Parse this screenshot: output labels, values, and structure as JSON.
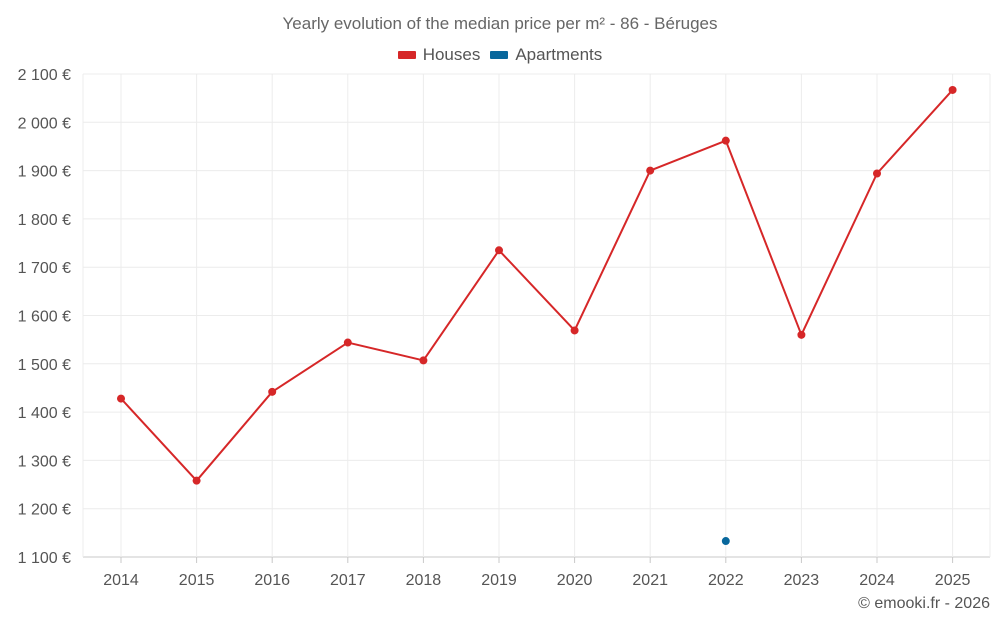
{
  "chart_data": {
    "type": "line",
    "title": "Yearly evolution of the median price per m² - 86 - Béruges",
    "x": [
      "2014",
      "2015",
      "2016",
      "2017",
      "2018",
      "2019",
      "2020",
      "2021",
      "2022",
      "2023",
      "2024",
      "2025"
    ],
    "series": [
      {
        "name": "Houses",
        "color": "#d62728",
        "values": [
          1428,
          1258,
          1442,
          1544,
          1507,
          1735,
          1569,
          1900,
          1962,
          1560,
          1894,
          2067
        ]
      },
      {
        "name": "Apartments",
        "color": "#08679c",
        "values": [
          null,
          null,
          null,
          null,
          null,
          null,
          null,
          null,
          1133,
          null,
          null,
          null
        ]
      }
    ],
    "ylim": [
      1100,
      2100
    ],
    "yticks": [
      1100,
      1200,
      1300,
      1400,
      1500,
      1600,
      1700,
      1800,
      1900,
      2000,
      2100
    ],
    "ytick_labels": [
      "1 100 €",
      "1 200 €",
      "1 300 €",
      "1 400 €",
      "1 500 €",
      "1 600 €",
      "1 700 €",
      "1 800 €",
      "1 900 €",
      "2 000 €",
      "2 100 €"
    ],
    "grid": true,
    "legend_position": "top-center"
  },
  "credit": "© emooki.fr - 2026"
}
